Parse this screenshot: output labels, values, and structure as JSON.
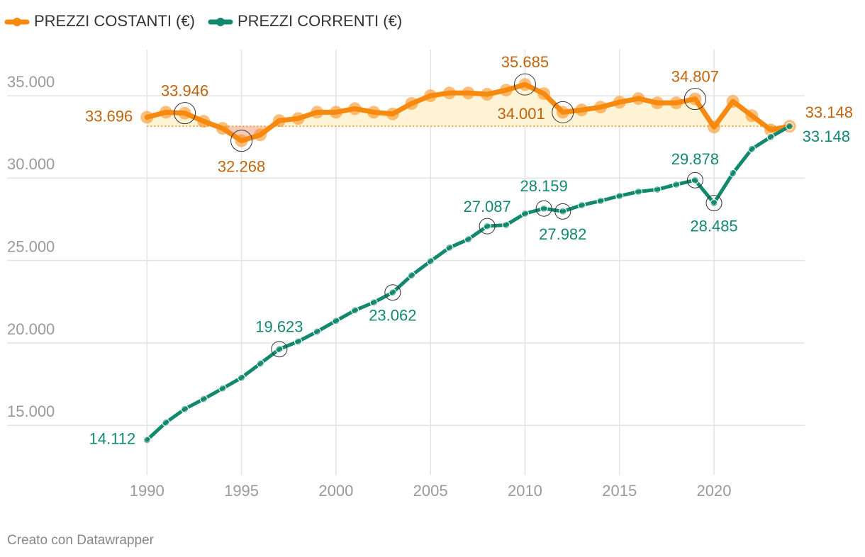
{
  "chart_data": {
    "type": "line",
    "x": [
      1990,
      1991,
      1992,
      1993,
      1994,
      1995,
      1996,
      1997,
      1998,
      1999,
      2000,
      2001,
      2002,
      2003,
      2004,
      2005,
      2006,
      2007,
      2008,
      2009,
      2010,
      2011,
      2012,
      2013,
      2014,
      2015,
      2016,
      2017,
      2018,
      2019,
      2020,
      2021,
      2022,
      2023,
      2024
    ],
    "series": [
      {
        "name": "PREZZI COSTANTI (€)",
        "color": "#f7890e",
        "label_color": "#c0650f",
        "values": [
          33696,
          34000,
          33946,
          33450,
          33020,
          32268,
          32630,
          33490,
          33620,
          34000,
          34000,
          34220,
          34000,
          33900,
          34530,
          35000,
          35170,
          35170,
          35090,
          35340,
          35685,
          35130,
          34001,
          34140,
          34310,
          34610,
          34830,
          34570,
          34570,
          34807,
          33100,
          34660,
          33790,
          32930,
          33148
        ],
        "value_labels": [
          "33.696",
          null,
          "33.946",
          null,
          null,
          "32.268",
          null,
          null,
          null,
          null,
          null,
          null,
          null,
          null,
          null,
          null,
          null,
          null,
          null,
          null,
          "35.685",
          null,
          "34.001",
          null,
          null,
          null,
          null,
          null,
          null,
          "34.807",
          null,
          null,
          null,
          null,
          "33.148"
        ]
      },
      {
        "name": "PREZZI CORRENTI (€)",
        "color": "#12896f",
        "label_color": "#138a6f",
        "values": [
          14112,
          15170,
          15990,
          16600,
          17240,
          17890,
          18750,
          19623,
          20090,
          20690,
          21340,
          21980,
          22460,
          23062,
          24100,
          24960,
          25780,
          26290,
          27087,
          27160,
          27850,
          28159,
          27982,
          28360,
          28620,
          28920,
          29180,
          29310,
          29610,
          29878,
          28485,
          30300,
          31770,
          32500,
          33148
        ],
        "value_labels": [
          "14.112",
          null,
          null,
          null,
          null,
          null,
          null,
          "19.623",
          null,
          null,
          null,
          null,
          null,
          "23.062",
          null,
          null,
          null,
          null,
          "27.087",
          null,
          null,
          "28.159",
          "27.982",
          null,
          null,
          null,
          null,
          null,
          null,
          "29.878",
          "28.485",
          null,
          null,
          null,
          "33.148"
        ]
      }
    ],
    "xlim": [
      1982.6,
      2024.8
    ],
    "xticks": [
      1990,
      1995,
      2000,
      2005,
      2010,
      2015,
      2020
    ],
    "ylim": [
      12000,
      37800
    ],
    "yticks": [
      {
        "value": 15000,
        "label": "15.000"
      },
      {
        "value": 20000,
        "label": "20.000"
      },
      {
        "value": 25000,
        "label": "25.000"
      },
      {
        "value": 30000,
        "label": "30.000"
      },
      {
        "value": 35000,
        "label": "35.000"
      }
    ],
    "grid": true,
    "footer": "Creato con Datawrapper"
  }
}
